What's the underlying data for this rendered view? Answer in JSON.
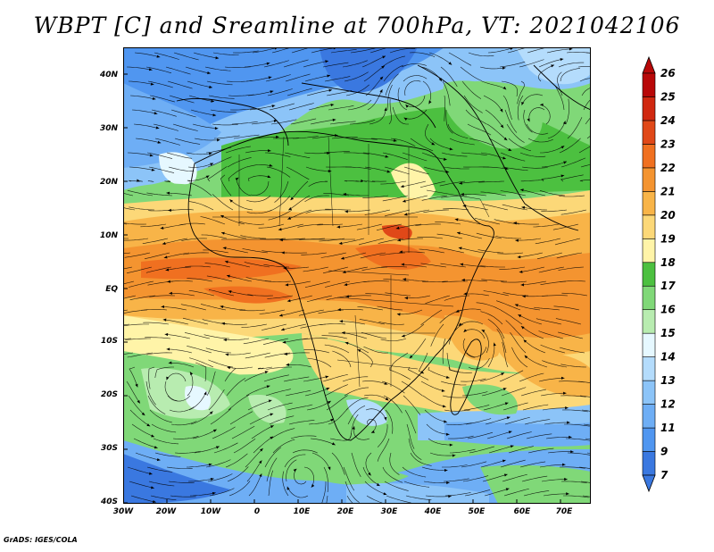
{
  "title": "WBPT [C] and Sreamline at 700hPa, VT: 2021042106",
  "credit": "GrADS: IGES/COLA",
  "map": {
    "lat_ticks": [
      "40N",
      "30N",
      "20N",
      "10N",
      "EQ",
      "10S",
      "20S",
      "30S",
      "40S"
    ],
    "lon_ticks": [
      "30W",
      "20W",
      "10W",
      "0",
      "10E",
      "20E",
      "30E",
      "40E",
      "50E",
      "60E",
      "70E"
    ]
  },
  "colorbar": {
    "levels": [
      "7",
      "9",
      "11",
      "12",
      "13",
      "14",
      "15",
      "16",
      "17",
      "18",
      "19",
      "20",
      "21",
      "22",
      "23",
      "24",
      "25",
      "26"
    ],
    "colors": [
      "#3a78e0",
      "#5096f0",
      "#6eaef5",
      "#8cc4f8",
      "#b4dcfc",
      "#e6f8ff",
      "#b8ecb0",
      "#80d878",
      "#4cc040",
      "#fff4a8",
      "#fcd878",
      "#f8b448",
      "#f49430",
      "#f07020",
      "#e04818",
      "#d02810",
      "#b80808"
    ]
  }
}
